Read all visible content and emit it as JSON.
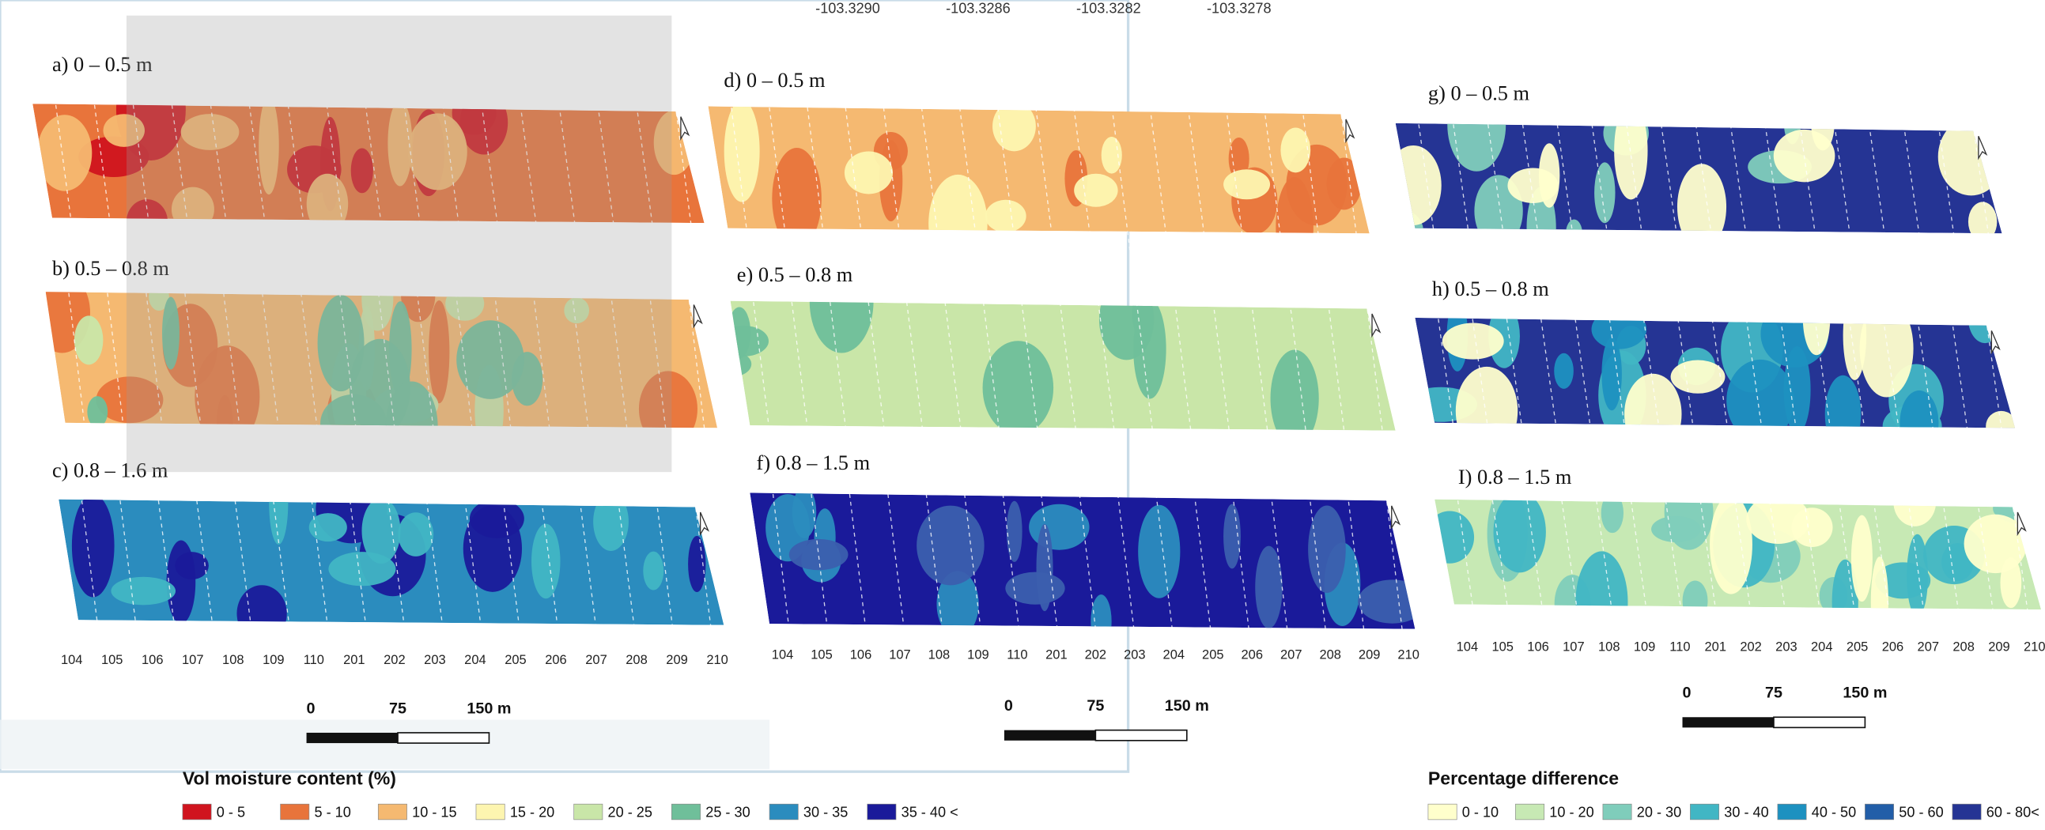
{
  "coordinates": [
    "-103.3290",
    "-103.3286",
    "-103.3282",
    "-103.3278"
  ],
  "panels": [
    {
      "label": "a) 0 – 0.5 m",
      "fill": "#e8743b",
      "patch_colors": [
        "#d0141e",
        "#f5b971"
      ]
    },
    {
      "label": "b) 0.5 – 0.8 m",
      "fill": "#f5b971",
      "patch_colors": [
        "#e8743b",
        "#c9e6a8",
        "#6fbf9a"
      ]
    },
    {
      "label": "c) 0.8 – 1.6 m",
      "fill": "#2b8cbe",
      "patch_colors": [
        "#1a1a9a",
        "#41b6c4"
      ]
    },
    {
      "label": "d) 0 – 0.5 m",
      "fill": "#f5b971",
      "patch_colors": [
        "#e8743b",
        "#fdf5b0"
      ]
    },
    {
      "label": "e) 0.5 – 0.8 m",
      "fill": "#c9e6a8",
      "patch_colors": [
        "#6fbf9a"
      ]
    },
    {
      "label": "f) 0.8 – 1.5 m",
      "fill": "#1a1a9a",
      "patch_colors": [
        "#2b8cbe",
        "#3b5fae"
      ]
    },
    {
      "label": "g) 0 – 0.5 m",
      "fill": "#253494",
      "patch_colors": [
        "#7fcdbb",
        "#ffffcc"
      ]
    },
    {
      "label": "h) 0.5 – 0.8 m",
      "fill": "#253494",
      "patch_colors": [
        "#41b6c4",
        "#1d91c0",
        "#ffffcc"
      ]
    },
    {
      "label": "I) 0.8 – 1.5 m",
      "fill": "#c7e9b4",
      "patch_colors": [
        "#7fcdbb",
        "#41b6c4",
        "#ffffcc"
      ]
    }
  ],
  "groups": [
    {
      "line_labels": [
        "104",
        "105",
        "106",
        "107",
        "108",
        "109",
        "110",
        "201",
        "202",
        "203",
        "204",
        "205",
        "206",
        "207",
        "208",
        "209",
        "210"
      ],
      "scale_bar": [
        "0",
        "75",
        "150 m"
      ]
    },
    {
      "line_labels": [
        "104",
        "105",
        "106",
        "107",
        "108",
        "109",
        "110",
        "201",
        "202",
        "203",
        "204",
        "205",
        "206",
        "207",
        "208",
        "209",
        "210"
      ],
      "scale_bar": [
        "0",
        "75",
        "150 m"
      ]
    },
    {
      "line_labels": [
        "104",
        "105",
        "106",
        "107",
        "108",
        "109",
        "110",
        "201",
        "202",
        "203",
        "204",
        "205",
        "206",
        "207",
        "208",
        "209",
        "210"
      ],
      "scale_bar": [
        "0",
        "75",
        "150 m"
      ]
    }
  ],
  "legends": [
    {
      "title": "Vol moisture content (%)",
      "items": [
        {
          "label": "0 - 5",
          "color": "#d0141e"
        },
        {
          "label": "5 - 10",
          "color": "#e8743b"
        },
        {
          "label": "10 - 15",
          "color": "#f5b971"
        },
        {
          "label": "15 - 20",
          "color": "#fdf5b0"
        },
        {
          "label": "20 - 25",
          "color": "#c9e6a8"
        },
        {
          "label": "25 - 30",
          "color": "#6fbf9a"
        },
        {
          "label": "30 - 35",
          "color": "#2b8cbe"
        },
        {
          "label": "35 - 40 <",
          "color": "#1a1a9a"
        }
      ]
    },
    {
      "title": "Percentage difference",
      "items": [
        {
          "label": "0 - 10",
          "color": "#ffffcc"
        },
        {
          "label": "10 - 20",
          "color": "#c7e9b4"
        },
        {
          "label": "20 - 30",
          "color": "#7fcdbb"
        },
        {
          "label": "30 - 40",
          "color": "#41b6c4"
        },
        {
          "label": "40 - 50",
          "color": "#1d91c0"
        },
        {
          "label": "50 - 60",
          "color": "#225ea8"
        },
        {
          "label": "60 - 80<",
          "color": "#253494"
        }
      ]
    }
  ]
}
